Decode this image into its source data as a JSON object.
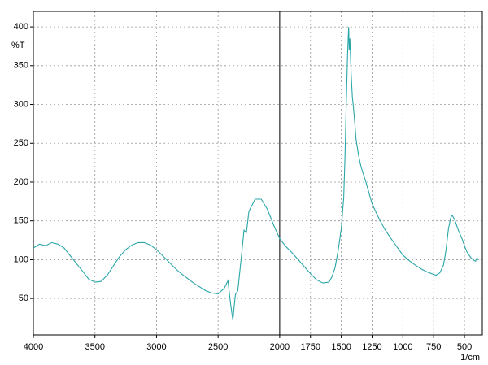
{
  "chart_data": {
    "type": "line",
    "y_label": "%T",
    "x_label": "1/cm",
    "color": "#2aa6a8",
    "x": [
      4000,
      3950,
      3900,
      3850,
      3800,
      3750,
      3700,
      3650,
      3600,
      3550,
      3500,
      3450,
      3400,
      3350,
      3300,
      3250,
      3200,
      3150,
      3100,
      3050,
      3000,
      2950,
      2900,
      2850,
      2800,
      2750,
      2700,
      2650,
      2600,
      2550,
      2500,
      2450,
      2420,
      2400,
      2380,
      2360,
      2340,
      2310,
      2290,
      2270,
      2250,
      2200,
      2150,
      2100,
      2050,
      2000,
      1950,
      1900,
      1850,
      1800,
      1750,
      1700,
      1650,
      1600,
      1575,
      1550,
      1525,
      1500,
      1480,
      1470,
      1460,
      1450,
      1445,
      1440,
      1435,
      1430,
      1420,
      1410,
      1400,
      1390,
      1380,
      1360,
      1340,
      1300,
      1250,
      1200,
      1150,
      1100,
      1050,
      1000,
      950,
      900,
      850,
      800,
      750,
      730,
      700,
      670,
      650,
      630,
      610,
      600,
      580,
      550,
      520,
      500,
      480,
      450,
      430,
      410,
      400,
      380
    ],
    "values": [
      115,
      120,
      118,
      122,
      120,
      115,
      105,
      95,
      85,
      75,
      71,
      72,
      80,
      92,
      104,
      113,
      119,
      122,
      122,
      119,
      113,
      105,
      97,
      89,
      82,
      76,
      70,
      65,
      60,
      57,
      56,
      63,
      73,
      45,
      22,
      55,
      60,
      105,
      138,
      135,
      162,
      178,
      178,
      165,
      145,
      127,
      117,
      109,
      100,
      91,
      82,
      74,
      70,
      71,
      78,
      90,
      112,
      140,
      180,
      230,
      300,
      360,
      380,
      400,
      370,
      385,
      340,
      310,
      295,
      275,
      255,
      235,
      220,
      200,
      172,
      155,
      140,
      128,
      117,
      106,
      99,
      93,
      88,
      84,
      81,
      80,
      83,
      93,
      112,
      140,
      155,
      157,
      152,
      138,
      127,
      118,
      110,
      103,
      100,
      98,
      102,
      100
    ],
    "xlim": [
      4000,
      355
    ],
    "ylim": [
      3,
      420
    ],
    "xticks": [
      4000,
      3500,
      3000,
      2500,
      2000,
      1750,
      1500,
      1250,
      1000,
      750,
      500
    ],
    "yticks": [
      50,
      100,
      150,
      200,
      250,
      300,
      350,
      400
    ],
    "grid": true,
    "marker_x": 2000
  }
}
